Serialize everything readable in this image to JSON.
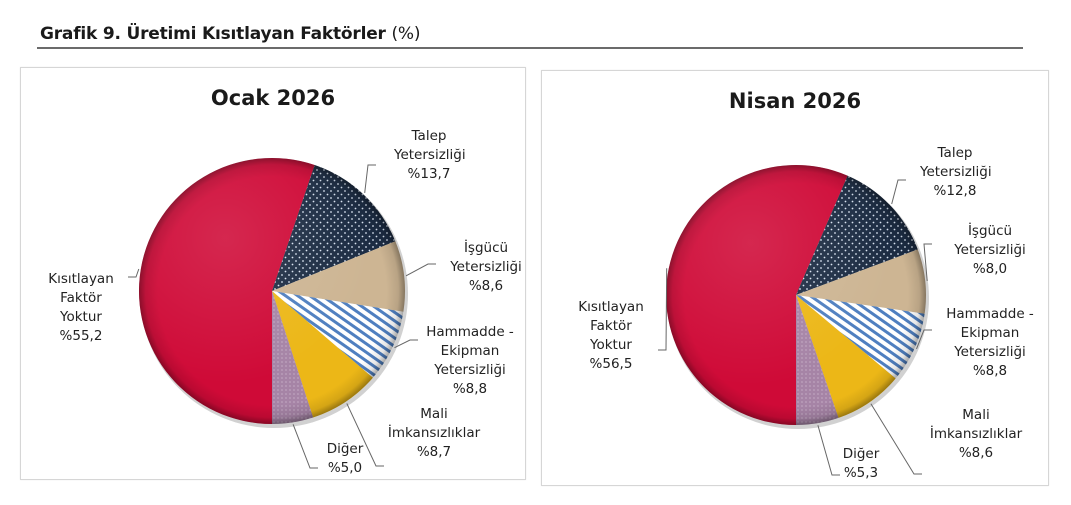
{
  "figure": {
    "title": "Grafik 9. Üretimi Kısıtlayan Faktörler",
    "unit": "(%)"
  },
  "colors": {
    "kisitlayan": "#cf0a37",
    "talep": "#1c2c43",
    "isgucu": "#cdb593",
    "hammadde_stripe": "#4f7fc0",
    "mali": "#ecb717",
    "diger": "#a684a6",
    "rule": "#6b6b6b",
    "leader": "#666666"
  },
  "chart_data": [
    {
      "type": "pie",
      "title": "Ocak 2026",
      "categories": [
        "Kısıtlayan Faktör Yoktur",
        "Talep Yetersizliği",
        "İşgücü Yetersizliği",
        "Hammadde - Ekipman Yetersizliği",
        "Mali İmkansızlıklar",
        "Diğer"
      ],
      "values": [
        55.2,
        13.7,
        8.6,
        8.8,
        8.7,
        5.0
      ],
      "value_labels": [
        "%55,2",
        "%13,7",
        "%8,6",
        "%8,8",
        "%8,7",
        "%5,0"
      ],
      "legend": "none (data labels with leader lines)"
    },
    {
      "type": "pie",
      "title": "Nisan 2026",
      "categories": [
        "Kısıtlayan Faktör Yoktur",
        "Talep Yetersizliği",
        "İşgücü Yetersizliği",
        "Hammadde - Ekipman Yetersizliği",
        "Mali İmkansızlıklar",
        "Diğer"
      ],
      "values": [
        56.5,
        12.8,
        8.0,
        8.8,
        8.6,
        5.3
      ],
      "value_labels": [
        "%56,5",
        "%12,8",
        "%8,0",
        "%8,8",
        "%8,6",
        "%5,3"
      ],
      "legend": "none (data labels with leader lines)"
    }
  ],
  "panels": [
    {
      "title": "Ocak 2026",
      "labels": {
        "kisitlayan": [
          "Kısıtlayan",
          "Faktör",
          "Yoktur",
          "%55,2"
        ],
        "talep": [
          "Talep",
          "Yetersizliği",
          "%13,7"
        ],
        "isgucu": [
          "İşgücü",
          "Yetersizliği",
          "%8,6"
        ],
        "hammadde": [
          "Hammadde -",
          "Ekipman",
          "Yetersizliği",
          "%8,8"
        ],
        "mali": [
          "Mali",
          "İmkansızlıklar",
          "%8,7"
        ],
        "diger": [
          "Diğer",
          "%5,0"
        ]
      }
    },
    {
      "title": "Nisan 2026",
      "labels": {
        "kisitlayan": [
          "Kısıtlayan",
          "Faktör",
          "Yoktur",
          "%56,5"
        ],
        "talep": [
          "Talep",
          "Yetersizliği",
          "%12,8"
        ],
        "isgucu": [
          "İşgücü",
          "Yetersizliği",
          "%8,0"
        ],
        "hammadde": [
          "Hammadde -",
          "Ekipman",
          "Yetersizliği",
          "%8,8"
        ],
        "mali": [
          "Mali",
          "İmkansızlıklar",
          "%8,6"
        ],
        "diger": [
          "Diğer",
          "%5,3"
        ]
      }
    }
  ]
}
